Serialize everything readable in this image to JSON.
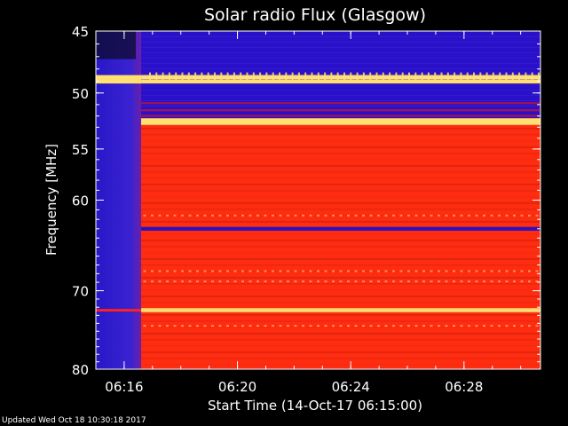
{
  "chart_data": {
    "type": "heatmap",
    "title": "Solar radio Flux (Glasgow)",
    "xlabel": "Start Time (14-Oct-17 06:15:00)",
    "ylabel": "Frequency [MHz]",
    "x_unit": "minutes after 06:15:00",
    "xlim": [
      0,
      15.7
    ],
    "ylim": [
      45,
      80
    ],
    "y_scale": "log",
    "y_inverted": true,
    "x_ticks": [
      {
        "value": 1.0,
        "label": "06:16"
      },
      {
        "value": 5.0,
        "label": "06:20"
      },
      {
        "value": 9.0,
        "label": "06:24"
      },
      {
        "value": 13.0,
        "label": "06:28"
      }
    ],
    "y_ticks": [
      {
        "value": 45,
        "label": "45"
      },
      {
        "value": 50,
        "label": "50"
      },
      {
        "value": 55,
        "label": "55"
      },
      {
        "value": 60,
        "label": "60"
      },
      {
        "value": 70,
        "label": "70"
      },
      {
        "value": 80,
        "label": "80"
      }
    ],
    "gap_end_minute": 1.6,
    "horizontal_bands": [
      {
        "from": 45.0,
        "to": 48.5,
        "level": "low"
      },
      {
        "from": 48.5,
        "to": 49.2,
        "level": "very high"
      },
      {
        "from": 49.2,
        "to": 52.2,
        "level": "low"
      },
      {
        "from": 52.2,
        "to": 52.8,
        "level": "very high"
      },
      {
        "from": 52.8,
        "to": 80.0,
        "level": "high"
      },
      {
        "from": 62.8,
        "to": 63.2,
        "level": "low"
      },
      {
        "from": 72.1,
        "to": 72.6,
        "level": "very high"
      }
    ],
    "colors": {
      "low": "#2a10c8",
      "medium": "#c81e28",
      "high": "#ff2d10",
      "very_high": "#ffe070",
      "background": "#000000",
      "text": "#ffffff"
    }
  },
  "footer": "Updated Wed Oct 18 10:30:18 2017"
}
